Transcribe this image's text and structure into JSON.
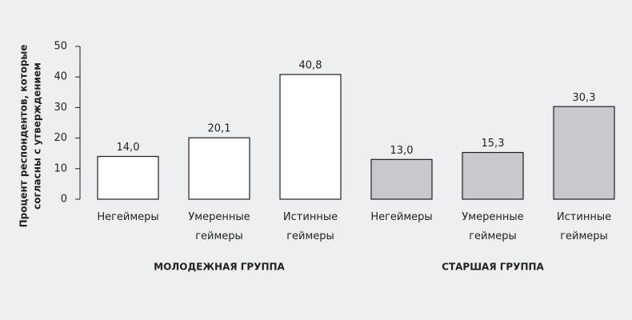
{
  "chart_data": {
    "type": "bar",
    "y_label": [
      "Процент респондентов, которые",
      "согласны с утверждением"
    ],
    "categories": [
      "Негеймеры",
      "Умеренные геймеры",
      "Истинные геймеры"
    ],
    "series": [
      {
        "name": "МОЛОДЕЖНАЯ ГРУППА",
        "color": "#ffffff",
        "values": [
          14.0,
          20.1,
          40.8
        ],
        "value_labels": [
          "14,0",
          "20,1",
          "40,8"
        ]
      },
      {
        "name": "СТАРШАЯ ГРУППА",
        "color": "#c8c9cc",
        "values": [
          13.0,
          15.3,
          30.3
        ],
        "value_labels": [
          "13,0",
          "15,3",
          "30,3"
        ]
      }
    ],
    "ylim": [
      0,
      50
    ],
    "yticks": [
      0,
      10,
      20,
      30,
      40,
      50
    ]
  }
}
